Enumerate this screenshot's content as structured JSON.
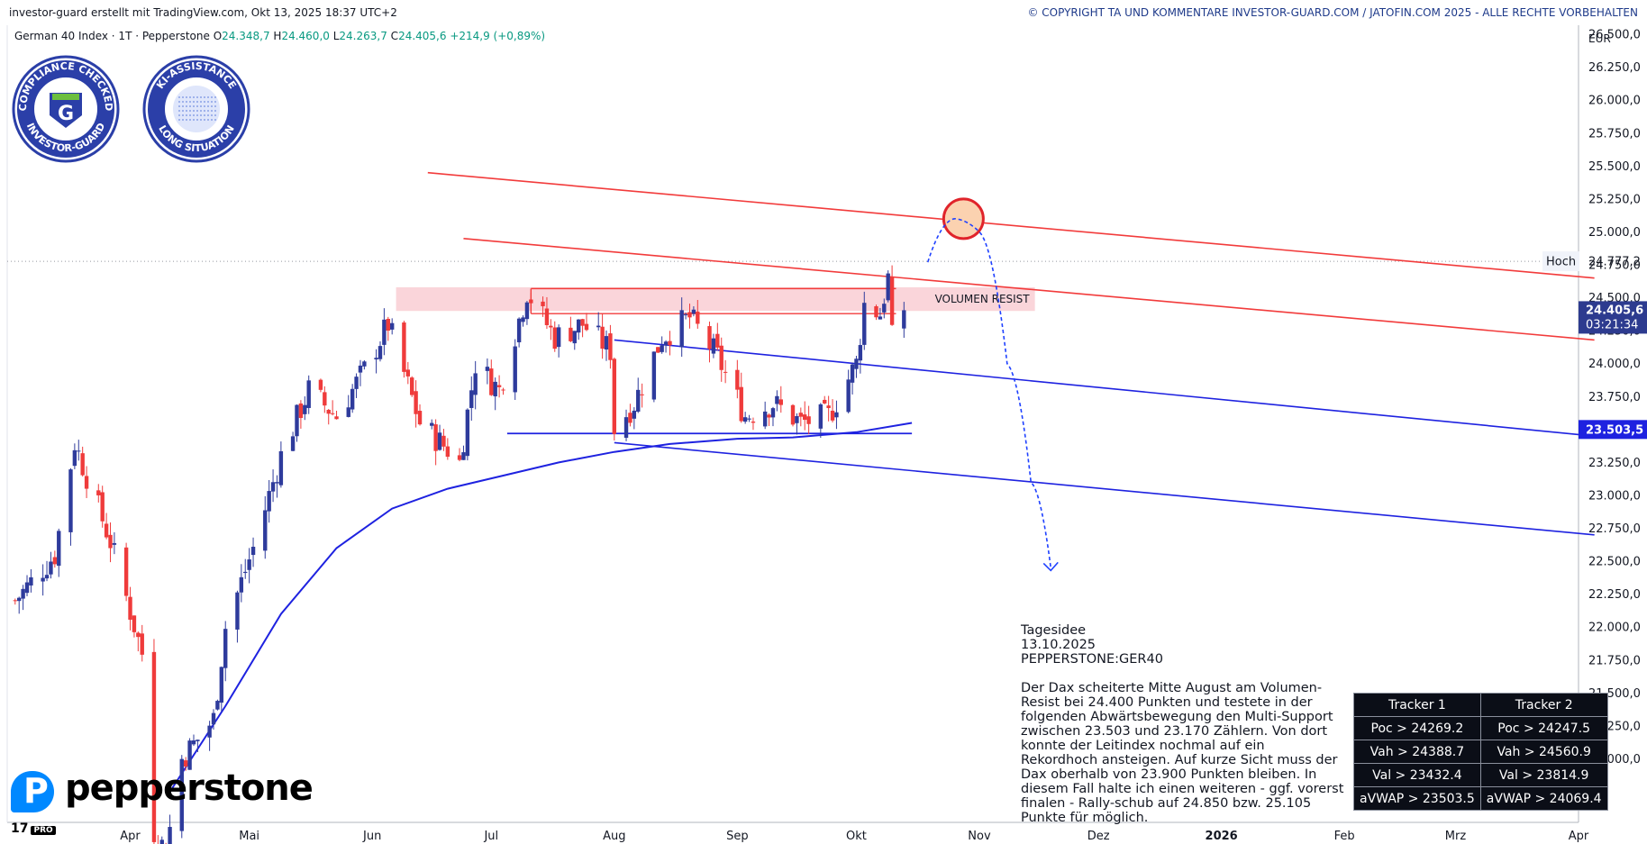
{
  "header": {
    "left": "investor-guard erstellt mit TradingView.com, Okt 13, 2025 18:37 UTC+2",
    "right": "© COPYRIGHT TA UND KOMMENTARE INVESTOR-GUARD.COM / JATOFIN.COM 2025 - ALLE RECHTE VORBEHALTEN"
  },
  "legend": {
    "symbol": "German 40 Index · 1T · Pepperstone",
    "o_label": "O",
    "o": "24.348,7",
    "h_label": "H",
    "h": "24.460,0",
    "l_label": "L",
    "l": "24.263,7",
    "c_label": "C",
    "c": "24.405,6",
    "change": "+214,9 (+0,89%)"
  },
  "badges": {
    "badge1_top": "COMPLIANCE CHECKED",
    "badge1_bottom": "INVESTOR-GUARD",
    "badge1_letter": "G",
    "badge2_top": "KI-ASSISTANCE",
    "badge2_bottom": "LONG SITUATION"
  },
  "colors": {
    "up": "#2e3b9c",
    "down": "#ef3b3b",
    "red_line": "#f23b3b",
    "blue_line": "#1e22e0",
    "zone": "#f8c7ce",
    "price_tag": "#2d3b8f",
    "support_tag": "#1e22e0"
  },
  "chart_data": {
    "type": "candlestick",
    "currency": "EUR",
    "ylim": [
      20750,
      26600
    ],
    "y_ticks": [
      26500,
      26250,
      26000,
      25750,
      25500,
      25250,
      25000,
      24750,
      24500,
      24250,
      24000,
      23750,
      23500,
      23250,
      23000,
      22750,
      22500,
      22250,
      22000,
      21750,
      21500,
      21250,
      21000
    ],
    "y_tick_labels": [
      "26.500,0",
      "26.250,0",
      "26.000,0",
      "25.750,0",
      "25.500,0",
      "25.250,0",
      "25.000,0",
      "24.750,0",
      "24.500,0",
      "24.250,0",
      "24.000,0",
      "23.750,0",
      "23.500,0",
      "23.250,0",
      "23.000,0",
      "22.750,0",
      "22.500,0",
      "22.250,0",
      "22.000,0",
      "21.750,0",
      "21.500,0",
      "21.250,0",
      "21.000,0"
    ],
    "x_ticks": [
      {
        "label": "Apr",
        "date": "2025-04-01"
      },
      {
        "label": "Mai",
        "date": "2025-05-01"
      },
      {
        "label": "Jun",
        "date": "2025-06-01"
      },
      {
        "label": "Jul",
        "date": "2025-07-01"
      },
      {
        "label": "Aug",
        "date": "2025-08-01"
      },
      {
        "label": "Sep",
        "date": "2025-09-01"
      },
      {
        "label": "Okt",
        "date": "2025-10-01"
      },
      {
        "label": "Nov",
        "date": "2025-11-01"
      },
      {
        "label": "Dez",
        "date": "2025-12-01"
      },
      {
        "label": "2026",
        "date": "2026-01-01"
      },
      {
        "label": "Feb",
        "date": "2026-02-01"
      },
      {
        "label": "Mrz",
        "date": "2026-03-01"
      },
      {
        "label": "Apr",
        "date": "2026-04-01"
      }
    ],
    "xlim": [
      "2025-03-01",
      "2026-04-01"
    ],
    "price": {
      "label": "24.405,6",
      "value": 24405.6,
      "countdown": "03:21:34"
    },
    "high": {
      "label": "Hoch",
      "value_label": "24.777,2",
      "value": 24777.2
    },
    "support_tag": {
      "label": "23.503,5",
      "value": 23503.5
    },
    "volume_zone": {
      "label": "VOLUMEN RESIST",
      "from": "2025-06-07",
      "to": "2025-11-15",
      "low": 24400,
      "high": 24580
    },
    "anchors": [
      {
        "date": "2025-03-03",
        "value": 22200
      },
      {
        "date": "2025-03-13",
        "value": 22550
      },
      {
        "date": "2025-03-18",
        "value": 23400
      },
      {
        "date": "2025-03-27",
        "value": 22650
      },
      {
        "date": "2025-04-04",
        "value": 21800
      },
      {
        "date": "2025-04-07",
        "value": 20450
      },
      {
        "date": "2025-04-10",
        "value": 20300
      },
      {
        "date": "2025-04-14",
        "value": 21000
      },
      {
        "date": "2025-04-22",
        "value": 21300
      },
      {
        "date": "2025-04-25",
        "value": 22000
      },
      {
        "date": "2025-05-02",
        "value": 22600
      },
      {
        "date": "2025-05-09",
        "value": 23300
      },
      {
        "date": "2025-05-16",
        "value": 23800
      },
      {
        "date": "2025-05-23",
        "value": 23600
      },
      {
        "date": "2025-05-30",
        "value": 23950
      },
      {
        "date": "2025-06-05",
        "value": 24300
      },
      {
        "date": "2025-06-13",
        "value": 23550
      },
      {
        "date": "2025-06-20",
        "value": 23350
      },
      {
        "date": "2025-06-23",
        "value": 23250
      },
      {
        "date": "2025-06-27",
        "value": 24000
      },
      {
        "date": "2025-07-03",
        "value": 23800
      },
      {
        "date": "2025-07-10",
        "value": 24550
      },
      {
        "date": "2025-07-17",
        "value": 24200
      },
      {
        "date": "2025-07-24",
        "value": 24300
      },
      {
        "date": "2025-07-31",
        "value": 24100
      },
      {
        "date": "2025-08-01",
        "value": 23500
      },
      {
        "date": "2025-08-06",
        "value": 23700
      },
      {
        "date": "2025-08-13",
        "value": 24200
      },
      {
        "date": "2025-08-20",
        "value": 24350
      },
      {
        "date": "2025-08-27",
        "value": 24050
      },
      {
        "date": "2025-09-03",
        "value": 23600
      },
      {
        "date": "2025-09-10",
        "value": 23700
      },
      {
        "date": "2025-09-17",
        "value": 23550
      },
      {
        "date": "2025-09-24",
        "value": 23600
      },
      {
        "date": "2025-10-01",
        "value": 24000
      },
      {
        "date": "2025-10-03",
        "value": 24450
      },
      {
        "date": "2025-10-07",
        "value": 24380
      },
      {
        "date": "2025-10-09",
        "value": 24650
      },
      {
        "date": "2025-10-10",
        "value": 24190
      },
      {
        "date": "2025-10-13",
        "value": 24405.6
      }
    ],
    "ma_line": [
      {
        "date": "2025-04-11",
        "value": 20750
      },
      {
        "date": "2025-04-25",
        "value": 21400
      },
      {
        "date": "2025-05-09",
        "value": 22100
      },
      {
        "date": "2025-05-23",
        "value": 22600
      },
      {
        "date": "2025-06-06",
        "value": 22900
      },
      {
        "date": "2025-06-20",
        "value": 23050
      },
      {
        "date": "2025-07-04",
        "value": 23150
      },
      {
        "date": "2025-07-18",
        "value": 23250
      },
      {
        "date": "2025-08-01",
        "value": 23330
      },
      {
        "date": "2025-08-15",
        "value": 23390
      },
      {
        "date": "2025-09-01",
        "value": 23430
      },
      {
        "date": "2025-09-15",
        "value": 23440
      },
      {
        "date": "2025-10-01",
        "value": 23480
      },
      {
        "date": "2025-10-15",
        "value": 23550
      }
    ],
    "red_channel": [
      {
        "x1": "2025-06-15",
        "y1": 25450,
        "x2": "2026-04-05",
        "y2": 24650
      },
      {
        "x1": "2025-06-24",
        "y1": 24950,
        "x2": "2026-04-05",
        "y2": 24180
      }
    ],
    "blue_channel": [
      {
        "x1": "2025-08-01",
        "y1": 24180,
        "x2": "2026-04-05",
        "y2": 23450
      },
      {
        "x1": "2025-08-01",
        "y1": 23400,
        "x2": "2026-04-05",
        "y2": 22700
      }
    ],
    "support_line": {
      "x1": "2025-07-05",
      "x2": "2025-10-15",
      "y": 23470
    },
    "resist_lines": [
      {
        "x1": "2025-07-11",
        "x2": "2025-10-11",
        "y": 24570
      },
      {
        "x1": "2025-07-11",
        "x2": "2025-10-11",
        "y": 24380
      }
    ],
    "target_circle": {
      "date": "2025-10-28",
      "value": 25100
    },
    "projection": [
      {
        "date": "2025-10-19",
        "value": 24770
      },
      {
        "date": "2025-10-26",
        "value": 25100
      },
      {
        "date": "2025-11-01",
        "value": 25000
      },
      {
        "date": "2025-11-08",
        "value": 24000
      },
      {
        "date": "2025-11-14",
        "value": 23100
      },
      {
        "date": "2025-11-19",
        "value": 22450
      }
    ]
  },
  "idea": {
    "title": "Tagesidee",
    "date": "13.10.2025",
    "symbol": "PEPPERSTONE:GER40",
    "body": "Der Dax scheiterte Mitte August am Volumen-Resist bei 24.400 Punkten und testete in der folgenden Abwärtsbewegung den Multi-Support zwischen 23.503 und 23.170 Zählern. Von dort konnte der Leitindex nochmal auf ein Rekordhoch ansteigen. Auf kurze Sicht muss der Dax oberhalb von 23.900 Punkten bleiben. In diesem Fall halte ich einen weiteren - ggf. vorerst finalen - Rally-schub auf 24.850 bzw. 25.105 Punkte für möglich."
  },
  "tracker": {
    "headers": [
      "Tracker 1",
      "Tracker 2"
    ],
    "rows": [
      [
        "Poc > 24269.2",
        "Poc > 24247.5"
      ],
      [
        "Vah > 24388.7",
        "Vah > 24560.9"
      ],
      [
        "Val > 23432.4",
        "Val > 23814.9"
      ],
      [
        "aVWAP > 23503.5",
        "aVWAP > 24069.4"
      ]
    ]
  },
  "brand": {
    "name": "pepperstone",
    "logo_letter": "P",
    "tv": "17",
    "tv_badge": "PRO"
  }
}
